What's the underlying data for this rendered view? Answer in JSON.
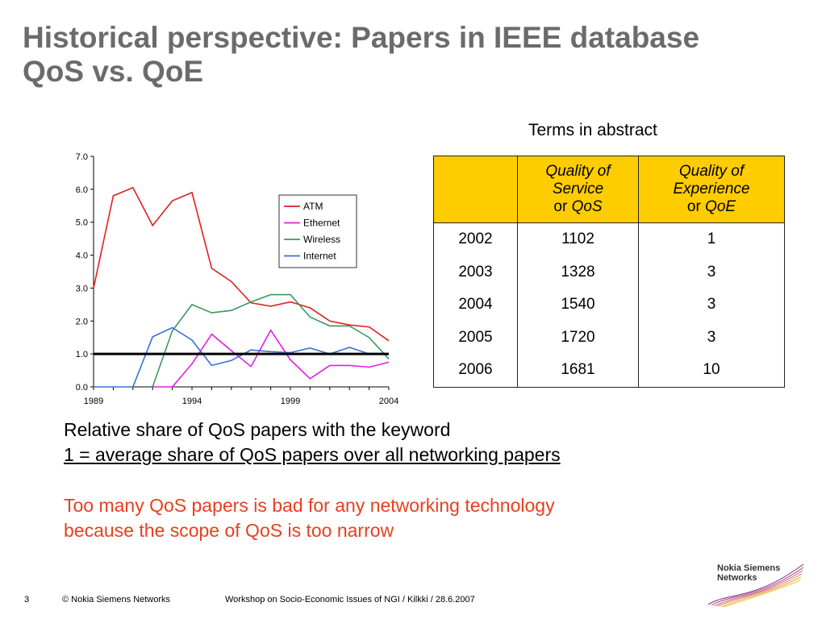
{
  "slide": {
    "title_line1": "Historical perspective: Papers in IEEE database",
    "title_line2": "QoS vs. QoE"
  },
  "table": {
    "caption": "Terms in abstract",
    "header": {
      "col1": "",
      "col2_line1": "Quality of",
      "col2_line2": "Service",
      "col2_or": "or",
      "col2_abbr": "QoS",
      "col3_line1": "Quality of",
      "col3_line2": "Experience",
      "col3_or": "or",
      "col3_abbr": "QoE"
    },
    "rows": [
      {
        "year": "2002",
        "qos": "1102",
        "qoe": "1"
      },
      {
        "year": "2003",
        "qos": "1328",
        "qoe": "3"
      },
      {
        "year": "2004",
        "qos": "1540",
        "qoe": "3"
      },
      {
        "year": "2005",
        "qos": "1720",
        "qoe": "3"
      },
      {
        "year": "2006",
        "qos": "1681",
        "qoe": "10"
      }
    ]
  },
  "chart_data": {
    "type": "line",
    "title": "",
    "xlabel": "",
    "ylabel": "",
    "x": [
      1989,
      1990,
      1991,
      1992,
      1993,
      1994,
      1995,
      1996,
      1997,
      1998,
      1999,
      2000,
      2001,
      2002,
      2003,
      2004
    ],
    "xticks": [
      "1989",
      "1994",
      "1999",
      "2004"
    ],
    "yticks": [
      "0.0",
      "1.0",
      "2.0",
      "3.0",
      "4.0",
      "5.0",
      "6.0",
      "7.0"
    ],
    "ylim": [
      0,
      7
    ],
    "xlim": [
      1989,
      2004
    ],
    "grid": false,
    "legend_position": "top-right",
    "reference_line": 1.0,
    "series": [
      {
        "name": "ATM",
        "color": "#e02020",
        "values": [
          3.0,
          5.8,
          6.05,
          4.9,
          5.65,
          5.9,
          3.6,
          3.2,
          2.55,
          2.45,
          2.58,
          2.4,
          2.0,
          1.88,
          1.82,
          1.4
        ]
      },
      {
        "name": "Ethernet",
        "color": "#e020e0",
        "values": [
          null,
          null,
          null,
          0.0,
          0.0,
          0.7,
          1.6,
          1.1,
          0.62,
          1.72,
          0.82,
          0.25,
          0.65,
          0.65,
          0.6,
          0.75
        ]
      },
      {
        "name": "Wireless",
        "color": "#3a9a5c",
        "values": [
          null,
          null,
          null,
          0.0,
          1.7,
          2.5,
          2.25,
          2.32,
          2.58,
          2.8,
          2.8,
          2.12,
          1.85,
          1.85,
          1.5,
          0.85
        ]
      },
      {
        "name": "Internet",
        "color": "#3a6fd8",
        "values": [
          0.0,
          0.0,
          0.0,
          1.52,
          1.8,
          1.42,
          0.65,
          0.8,
          1.12,
          1.07,
          1.04,
          1.18,
          1.0,
          1.2,
          1.0,
          1.0
        ]
      }
    ]
  },
  "note": {
    "line1": "Relative share of QoS papers with the keyword",
    "line2": "1 = average share of QoS papers over all networking papers"
  },
  "conclusion": {
    "line1": "Too many QoS papers is bad for any networking technology",
    "line2": "because the scope of QoS is too narrow"
  },
  "footer": {
    "page": "3",
    "copyright": "© Nokia Siemens Networks",
    "event": "Workshop on Socio-Economic Issues of NGI / Kilkki / 28.6.2007"
  },
  "logo": {
    "line1": "Nokia Siemens",
    "line2": "Networks",
    "color": "#8b2a7a"
  }
}
